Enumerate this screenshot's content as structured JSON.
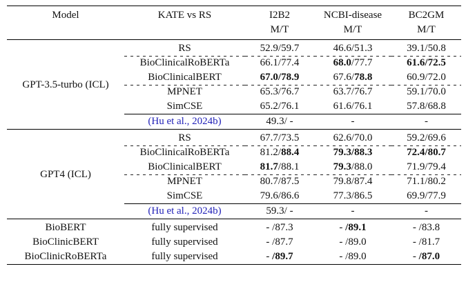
{
  "colors": {
    "background": "#ffffff",
    "text": "#111111",
    "rule": "#000000",
    "citation_link": "#2222b8"
  },
  "table": {
    "header": {
      "model": "Model",
      "method": "KATE vs RS",
      "datasets": [
        {
          "name": "I2B2",
          "metric": "M/T"
        },
        {
          "name": "NCBI-disease",
          "metric": "M/T"
        },
        {
          "name": "BC2GM",
          "metric": "M/T"
        }
      ]
    },
    "groups": [
      {
        "model": "GPT-3.5-turbo (ICL)",
        "rows": [
          {
            "method": "RS",
            "cells": [
              [
                {
                  "t": "52.9/59.7",
                  "b": false
                }
              ],
              [
                {
                  "t": "46.6/51.3",
                  "b": false
                }
              ],
              [
                {
                  "t": "39.1/50.8",
                  "b": false
                }
              ]
            ]
          },
          {
            "method": "BioClinicalRoBERTa",
            "cells": [
              [
                {
                  "t": "66.1/77.4",
                  "b": false
                }
              ],
              [
                {
                  "t": "68.0",
                  "b": true
                },
                {
                  "t": "/77.7",
                  "b": false
                }
              ],
              [
                {
                  "t": "61.6/72.5",
                  "b": true
                }
              ]
            ]
          },
          {
            "method": "BioClinicalBERT",
            "cells": [
              [
                {
                  "t": "67.0/78.9",
                  "b": true
                }
              ],
              [
                {
                  "t": "67.6/",
                  "b": false
                },
                {
                  "t": "78.8",
                  "b": true
                }
              ],
              [
                {
                  "t": "60.9/72.0",
                  "b": false
                }
              ]
            ]
          },
          {
            "method": "MPNET",
            "cells": [
              [
                {
                  "t": "65.3/76.7",
                  "b": false
                }
              ],
              [
                {
                  "t": "63.7/76.7",
                  "b": false
                }
              ],
              [
                {
                  "t": "59.1/70.0",
                  "b": false
                }
              ]
            ]
          },
          {
            "method": "SimCSE",
            "cells": [
              [
                {
                  "t": "65.2/76.1",
                  "b": false
                }
              ],
              [
                {
                  "t": "61.6/76.1",
                  "b": false
                }
              ],
              [
                {
                  "t": "57.8/68.8",
                  "b": false
                }
              ]
            ]
          },
          {
            "method": "(Hu et al., 2024b)",
            "citation": true,
            "cells": [
              [
                {
                  "t": "49.3/ -",
                  "b": false
                }
              ],
              [
                {
                  "t": "-",
                  "b": false
                }
              ],
              [
                {
                  "t": "-",
                  "b": false
                }
              ]
            ]
          }
        ]
      },
      {
        "model": "GPT4 (ICL)",
        "rows": [
          {
            "method": "RS",
            "cells": [
              [
                {
                  "t": "67.7/73.5",
                  "b": false
                }
              ],
              [
                {
                  "t": "62.6/70.0",
                  "b": false
                }
              ],
              [
                {
                  "t": "59.2/69.6",
                  "b": false
                }
              ]
            ]
          },
          {
            "method": "BioClinicalRoBERTa",
            "cells": [
              [
                {
                  "t": "81.2/",
                  "b": false
                },
                {
                  "t": "88.4",
                  "b": true
                }
              ],
              [
                {
                  "t": "79.3/88.3",
                  "b": true
                }
              ],
              [
                {
                  "t": "72.4/80.7",
                  "b": true
                }
              ]
            ]
          },
          {
            "method": "BioClinicalBERT",
            "cells": [
              [
                {
                  "t": "81.7",
                  "b": true
                },
                {
                  "t": "/88.1",
                  "b": false
                }
              ],
              [
                {
                  "t": "79.3",
                  "b": true
                },
                {
                  "t": "/88.0",
                  "b": false
                }
              ],
              [
                {
                  "t": "71.9/79.4",
                  "b": false
                }
              ]
            ]
          },
          {
            "method": "MPNET",
            "cells": [
              [
                {
                  "t": "80.7/87.5",
                  "b": false
                }
              ],
              [
                {
                  "t": "79.8/87.4",
                  "b": false
                }
              ],
              [
                {
                  "t": "71.1/80.2",
                  "b": false
                }
              ]
            ]
          },
          {
            "method": "SimCSE",
            "cells": [
              [
                {
                  "t": "79.6/86.6",
                  "b": false
                }
              ],
              [
                {
                  "t": "77.3/86.5",
                  "b": false
                }
              ],
              [
                {
                  "t": "69.9/77.9",
                  "b": false
                }
              ]
            ]
          },
          {
            "method": "(Hu et al., 2024b)",
            "citation": true,
            "cells": [
              [
                {
                  "t": "59.3/ -",
                  "b": false
                }
              ],
              [
                {
                  "t": "-",
                  "b": false
                }
              ],
              [
                {
                  "t": "-",
                  "b": false
                }
              ]
            ]
          }
        ]
      }
    ],
    "supervised_rows": [
      {
        "model": "BioBERT",
        "method": "fully supervised",
        "cells": [
          [
            {
              "t": "- /87.3",
              "b": false
            }
          ],
          [
            {
              "t": "- ",
              "b": false
            },
            {
              "t": "/89.1",
              "b": true
            }
          ],
          [
            {
              "t": "- /83.8",
              "b": false
            }
          ]
        ]
      },
      {
        "model": "BioClinicBERT",
        "method": "fully supervised",
        "cells": [
          [
            {
              "t": "- /87.7",
              "b": false
            }
          ],
          [
            {
              "t": "- /89.0",
              "b": false
            }
          ],
          [
            {
              "t": "- /81.7",
              "b": false
            }
          ]
        ]
      },
      {
        "model": "BioClinicRoBERTa",
        "method": "fully supervised",
        "cells": [
          [
            {
              "t": "- ",
              "b": false
            },
            {
              "t": "/89.7",
              "b": true
            }
          ],
          [
            {
              "t": "- /89.0",
              "b": false
            }
          ],
          [
            {
              "t": "- ",
              "b": false
            },
            {
              "t": "/87.0",
              "b": true
            }
          ]
        ]
      }
    ]
  }
}
